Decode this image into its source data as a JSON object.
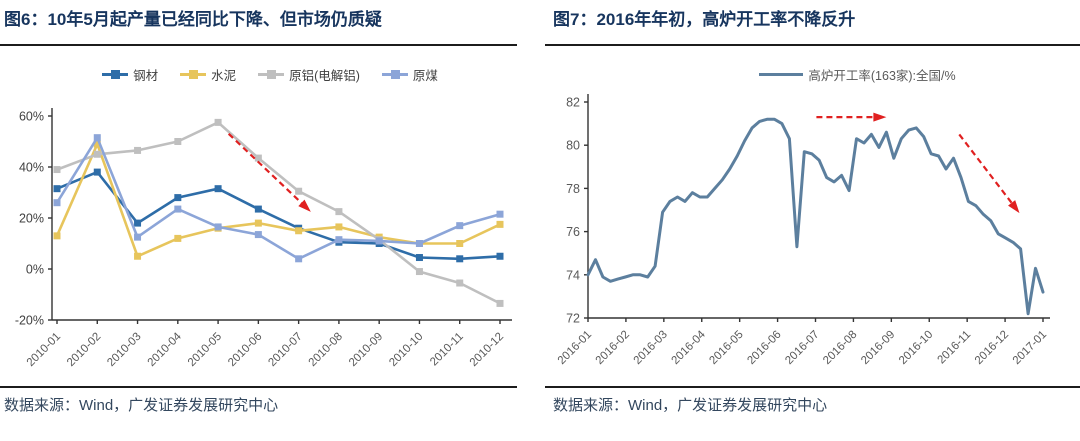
{
  "figure6": {
    "title": "图6：10年5月起产量已经同比下降、但市场仍质疑",
    "source": "数据来源：Wind，广发证券发展研究中心",
    "chart_data": {
      "type": "line",
      "categories": [
        "2010-01",
        "2010-02",
        "2010-03",
        "2010-04",
        "2010-05",
        "2010-06",
        "2010-07",
        "2010-08",
        "2010-09",
        "2010-10",
        "2010-11",
        "2010-12"
      ],
      "series": [
        {
          "name": "钢材",
          "color": "#2e6da8",
          "marker": "square",
          "values": [
            31.5,
            38,
            18,
            28,
            31.5,
            23.5,
            16,
            10.5,
            10,
            4.5,
            4,
            5
          ]
        },
        {
          "name": "水泥",
          "color": "#e7c55c",
          "marker": "square",
          "values": [
            13,
            49,
            5,
            12,
            16,
            18,
            15,
            16.5,
            12.5,
            10,
            10,
            17.5
          ]
        },
        {
          "name": "原铝(电解铝)",
          "color": "#bfbfbf",
          "marker": "square",
          "values": [
            39,
            45,
            46.5,
            50,
            57.5,
            43.5,
            30.5,
            22.5,
            11.5,
            -1,
            -5.5,
            -13.5
          ]
        },
        {
          "name": "原煤",
          "color": "#8ca5d8",
          "marker": "square",
          "values": [
            26,
            51.5,
            12.5,
            23.5,
            16.5,
            13.5,
            4,
            11.5,
            11,
            10,
            17,
            21.5
          ]
        }
      ],
      "ylim": [
        -20,
        60
      ],
      "ytick_values": [
        60,
        40,
        20,
        0,
        -20
      ],
      "ytick_labels": [
        "60%",
        "40%",
        "20%",
        "0%",
        "-20%"
      ],
      "grid": false,
      "legend_position": "top",
      "annotations": [
        {
          "type": "arrow",
          "color": "#e02020",
          "x1_frac": 0.39,
          "y1": 53,
          "x2_frac": 0.565,
          "y2": 23.5
        }
      ]
    }
  },
  "figure7": {
    "title": "图7：2016年年初，高炉开工率不降反升",
    "source": "数据来源：Wind，广发证券发展研究中心",
    "chart_data": {
      "type": "line",
      "x_labels": [
        "2016-01",
        "2016-02",
        "2016-03",
        "2016-04",
        "2016-05",
        "2016-06",
        "2016-07",
        "2016-08",
        "2016-09",
        "2016-10",
        "2016-11",
        "2016-12",
        "2017-01"
      ],
      "series": [
        {
          "name": "高炉开工率(163家):全国/%",
          "color": "#5c7f9e",
          "marker": "none",
          "values": [
            74.0,
            74.7,
            73.9,
            73.7,
            73.8,
            73.9,
            74.0,
            74.0,
            73.9,
            74.4,
            76.9,
            77.4,
            77.6,
            77.4,
            77.8,
            77.6,
            77.6,
            78.0,
            78.4,
            78.9,
            79.5,
            80.2,
            80.8,
            81.1,
            81.2,
            81.2,
            81.0,
            80.3,
            75.3,
            79.7,
            79.6,
            79.3,
            78.5,
            78.3,
            78.6,
            77.9,
            80.3,
            80.1,
            80.5,
            79.9,
            80.6,
            79.4,
            80.3,
            80.7,
            80.8,
            80.4,
            79.6,
            79.5,
            78.9,
            79.4,
            78.5,
            77.4,
            77.2,
            76.8,
            76.5,
            75.9,
            75.7,
            75.5,
            75.2,
            72.2,
            74.3,
            73.2
          ]
        }
      ],
      "ylim": [
        72,
        82
      ],
      "ytick_values": [
        82,
        80,
        78,
        76,
        74,
        72
      ],
      "ytick_labels": [
        "82",
        "80",
        "78",
        "76",
        "74",
        "72"
      ],
      "grid": false,
      "legend_position": "top",
      "annotations": [
        {
          "type": "arrow",
          "color": "#e02020",
          "x1_frac": 0.502,
          "y1": 81.3,
          "x2_frac": 0.647,
          "y2": 81.3
        },
        {
          "type": "arrow",
          "color": "#e02020",
          "x1_frac": 0.816,
          "y1": 80.5,
          "x2_frac": 0.943,
          "y2": 77.0
        }
      ]
    }
  }
}
